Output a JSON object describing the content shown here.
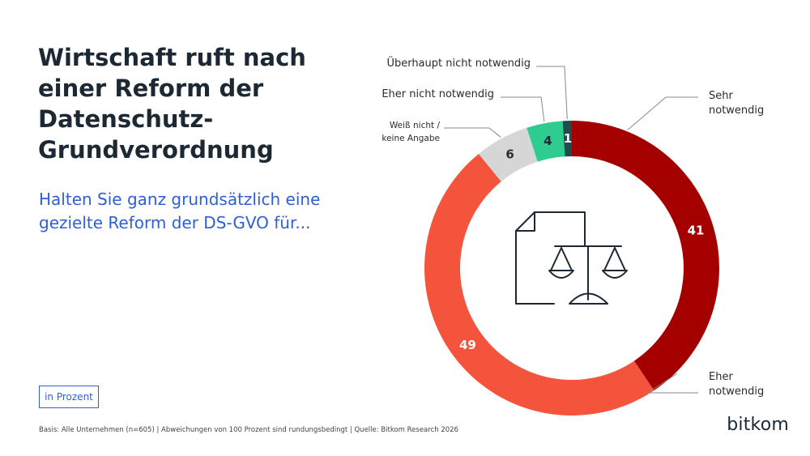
{
  "title_lines": [
    "Wirtschaft ruft nach",
    "einer Reform der",
    "Datenschutz-",
    "Grundverordnung"
  ],
  "question_lines": [
    "Halten Sie ganz grundsätzlich eine",
    "gezielte Reform der DS-GVO für..."
  ],
  "unit_label": "in Prozent",
  "footnote": "Basis: Alle Unternehmen (n=605) | Abweichungen von 100 Prozent sind rundungsbedingt | Quelle: Bitkom Research 2026",
  "logo": "bitkom",
  "colors": {
    "sehr_notwendig": "#a50000",
    "eher_notwendig": "#f4543c",
    "weiss_nicht": "#d6d6d6",
    "eher_nicht": "#2ecc8f",
    "ueberhaupt_nicht": "#1f4d4d",
    "text_dark": "#1c2833",
    "accent_blue": "#2f5fd8"
  },
  "chart_data": {
    "type": "pie",
    "variant": "donut",
    "categories": [
      "Sehr notwendig",
      "Eher notwendig",
      "Weiß nicht / keine Angabe",
      "Eher nicht notwendig",
      "Überhaupt nicht notwendig"
    ],
    "values": [
      41,
      49,
      6,
      4,
      1
    ],
    "unit": "in Prozent",
    "center_icon": "document-with-scales-icon"
  }
}
